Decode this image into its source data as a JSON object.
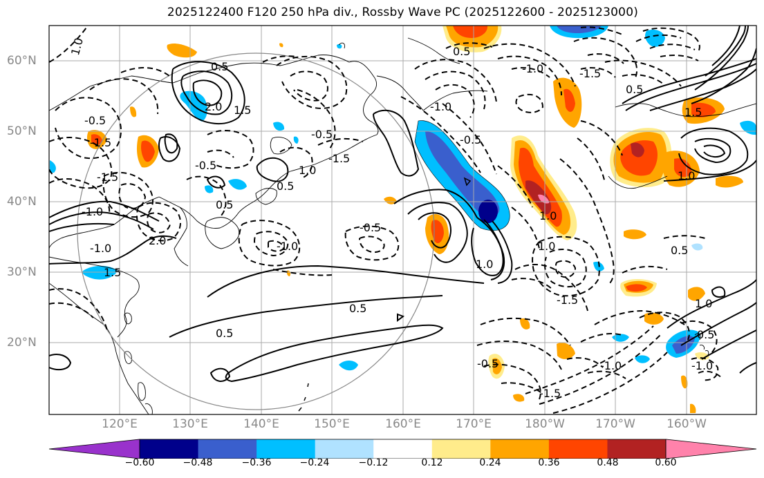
{
  "title": "2025122400 F120 250 hPa div., Rossby Wave PC (2025122600 - 2025123000)",
  "lat_labels": [
    "60°N",
    "50°N",
    "40°N",
    "30°N",
    "20°N"
  ],
  "lon_labels": [
    "120°E",
    "130°E",
    "140°E",
    "150°E",
    "160°E",
    "170°E",
    "180°W",
    "170°W",
    "160°W"
  ],
  "colorbar": {
    "ticks": [
      "−0.60",
      "−0.48",
      "−0.36",
      "−0.24",
      "−0.12",
      "0.12",
      "0.24",
      "0.36",
      "0.48",
      "0.60"
    ],
    "colors": [
      "#9932cc",
      "#00008b",
      "#3a5fcd",
      "#00bfff",
      "#b0e2ff",
      "#ffffff",
      "#ffec8b",
      "#ffa500",
      "#ff4500",
      "#b22222",
      "#ff82ab"
    ]
  },
  "contour_labels": [
    "1.0",
    "0.5",
    "2.0",
    "1.5",
    "-1.5",
    "-0.5",
    "-1.0",
    "-0.5",
    "2.0",
    "-1.5",
    "-1.0",
    "0.5",
    "1.5",
    "-1.5",
    "1.0",
    "-0.5",
    "-1.0",
    "0.5",
    "-0.5",
    "1.0",
    "0.5",
    "-1.5",
    "0.5",
    "1.0",
    "-1.0",
    "0.5",
    "-0.5",
    "0.5",
    "1.0",
    "0.5",
    "-1.0",
    "-1.5",
    "-1.0",
    "-0.5",
    "1.0",
    "1.5",
    "0.5",
    "-1.0",
    "1.0",
    "-1.5"
  ],
  "chart_data": {
    "type": "heatmap",
    "title": "2025122400 F120 250 hPa div., Rossby Wave PC (2025122600 - 2025123000)",
    "lat_ticks": [
      "60°N",
      "50°N",
      "40°N",
      "30°N",
      "20°N"
    ],
    "lon_ticks": [
      "120°E",
      "130°E",
      "140°E",
      "150°E",
      "160°E",
      "170°E",
      "180°W",
      "170°W",
      "160°W"
    ],
    "colorbar_levels": [
      -0.6,
      -0.48,
      -0.36,
      -0.24,
      -0.12,
      0.12,
      0.24,
      0.36,
      0.48,
      0.6
    ],
    "contour_levels": [
      -1.5,
      -1.0,
      -0.5,
      0.5,
      1.0,
      1.5,
      2.0
    ]
  }
}
